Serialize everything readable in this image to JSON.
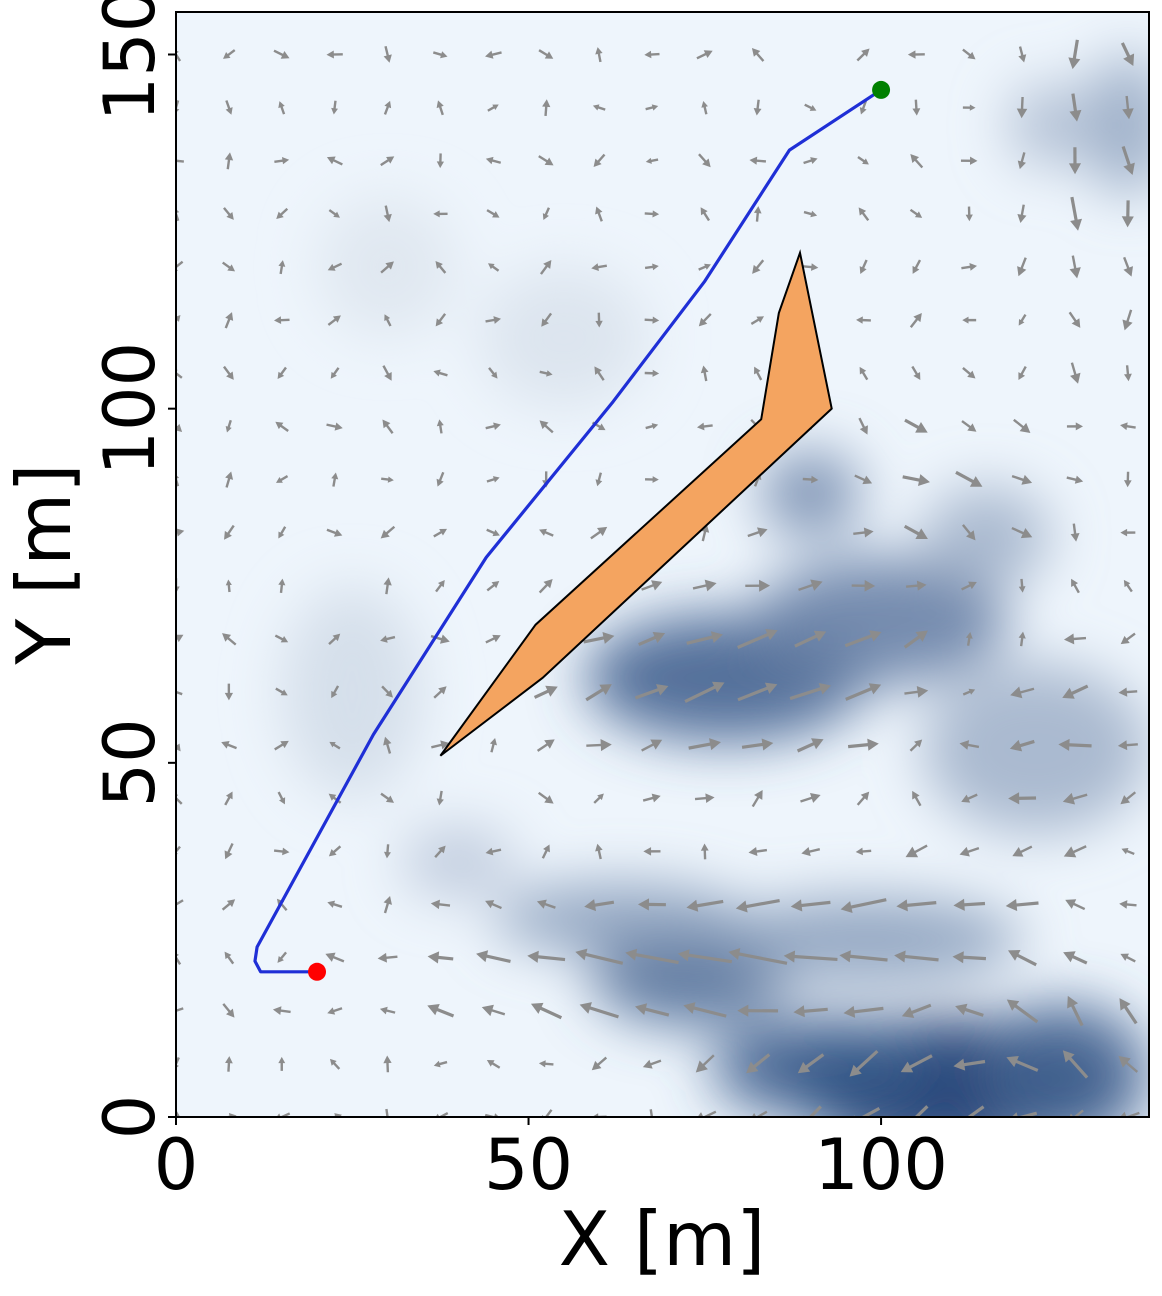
{
  "chart_data": {
    "type": "quiver-path",
    "xlabel": "X [m]",
    "ylabel": "Y [m]",
    "xlim": [
      0,
      138
    ],
    "ylim": [
      0,
      156
    ],
    "xticks": [
      0,
      50,
      100
    ],
    "yticks": [
      0,
      50,
      100,
      150
    ],
    "grid": false,
    "legend": "none",
    "colors": {
      "path": "#1f2fd6",
      "obstacle_fill": "#f4a460",
      "obstacle_edge": "#000000",
      "start_marker": "#ff0000",
      "goal_marker": "#008000",
      "arrows": "#8c8c8c",
      "field_low": "#f7fbff",
      "field_high": "#08306b"
    },
    "path": [
      [
        20.0,
        20.5
      ],
      [
        12.0,
        20.5
      ],
      [
        11.2,
        22.0
      ],
      [
        11.5,
        24.0
      ],
      [
        28.0,
        54.0
      ],
      [
        44.0,
        79.0
      ],
      [
        62.0,
        101.0
      ],
      [
        75.0,
        118.0
      ],
      [
        87.0,
        136.5
      ],
      [
        100.0,
        145.0
      ]
    ],
    "start": [
      20.0,
      20.5
    ],
    "goal": [
      100.0,
      145.0
    ],
    "obstacle": [
      [
        37.5,
        51.0
      ],
      [
        51.0,
        69.5
      ],
      [
        83.0,
        98.5
      ],
      [
        85.5,
        113.5
      ],
      [
        88.5,
        122.0
      ],
      [
        93.0,
        100.0
      ],
      [
        52.0,
        62.0
      ]
    ],
    "field_blobs": [
      {
        "x": 110,
        "y": 4,
        "rx": 22,
        "ry": 10,
        "s": 1.0
      },
      {
        "x": 92,
        "y": 7,
        "rx": 16,
        "ry": 7,
        "s": 0.8
      },
      {
        "x": 126,
        "y": 6,
        "rx": 12,
        "ry": 10,
        "s": 0.75
      },
      {
        "x": 73,
        "y": 20,
        "rx": 14,
        "ry": 7,
        "s": 0.7
      },
      {
        "x": 63,
        "y": 28,
        "rx": 18,
        "ry": 5,
        "s": 0.45
      },
      {
        "x": 98,
        "y": 25,
        "rx": 22,
        "ry": 6,
        "s": 0.45
      },
      {
        "x": 78,
        "y": 62,
        "rx": 20,
        "ry": 9,
        "s": 0.75
      },
      {
        "x": 100,
        "y": 70,
        "rx": 18,
        "ry": 9,
        "s": 0.6
      },
      {
        "x": 90,
        "y": 88,
        "rx": 7,
        "ry": 6,
        "s": 0.55
      },
      {
        "x": 122,
        "y": 52,
        "rx": 16,
        "ry": 12,
        "s": 0.35
      },
      {
        "x": 135,
        "y": 140,
        "rx": 6,
        "ry": 10,
        "s": 0.4
      },
      {
        "x": 124,
        "y": 140,
        "rx": 6,
        "ry": 6,
        "s": 0.3
      },
      {
        "x": 115,
        "y": 82,
        "rx": 9,
        "ry": 7,
        "s": 0.35
      },
      {
        "x": 40,
        "y": 36,
        "rx": 8,
        "ry": 5,
        "s": 0.25
      },
      {
        "x": 25,
        "y": 60,
        "rx": 10,
        "ry": 15,
        "s": 0.15
      },
      {
        "x": 55,
        "y": 110,
        "rx": 12,
        "ry": 10,
        "s": 0.12
      },
      {
        "x": 30,
        "y": 120,
        "rx": 10,
        "ry": 10,
        "s": 0.1
      }
    ]
  }
}
